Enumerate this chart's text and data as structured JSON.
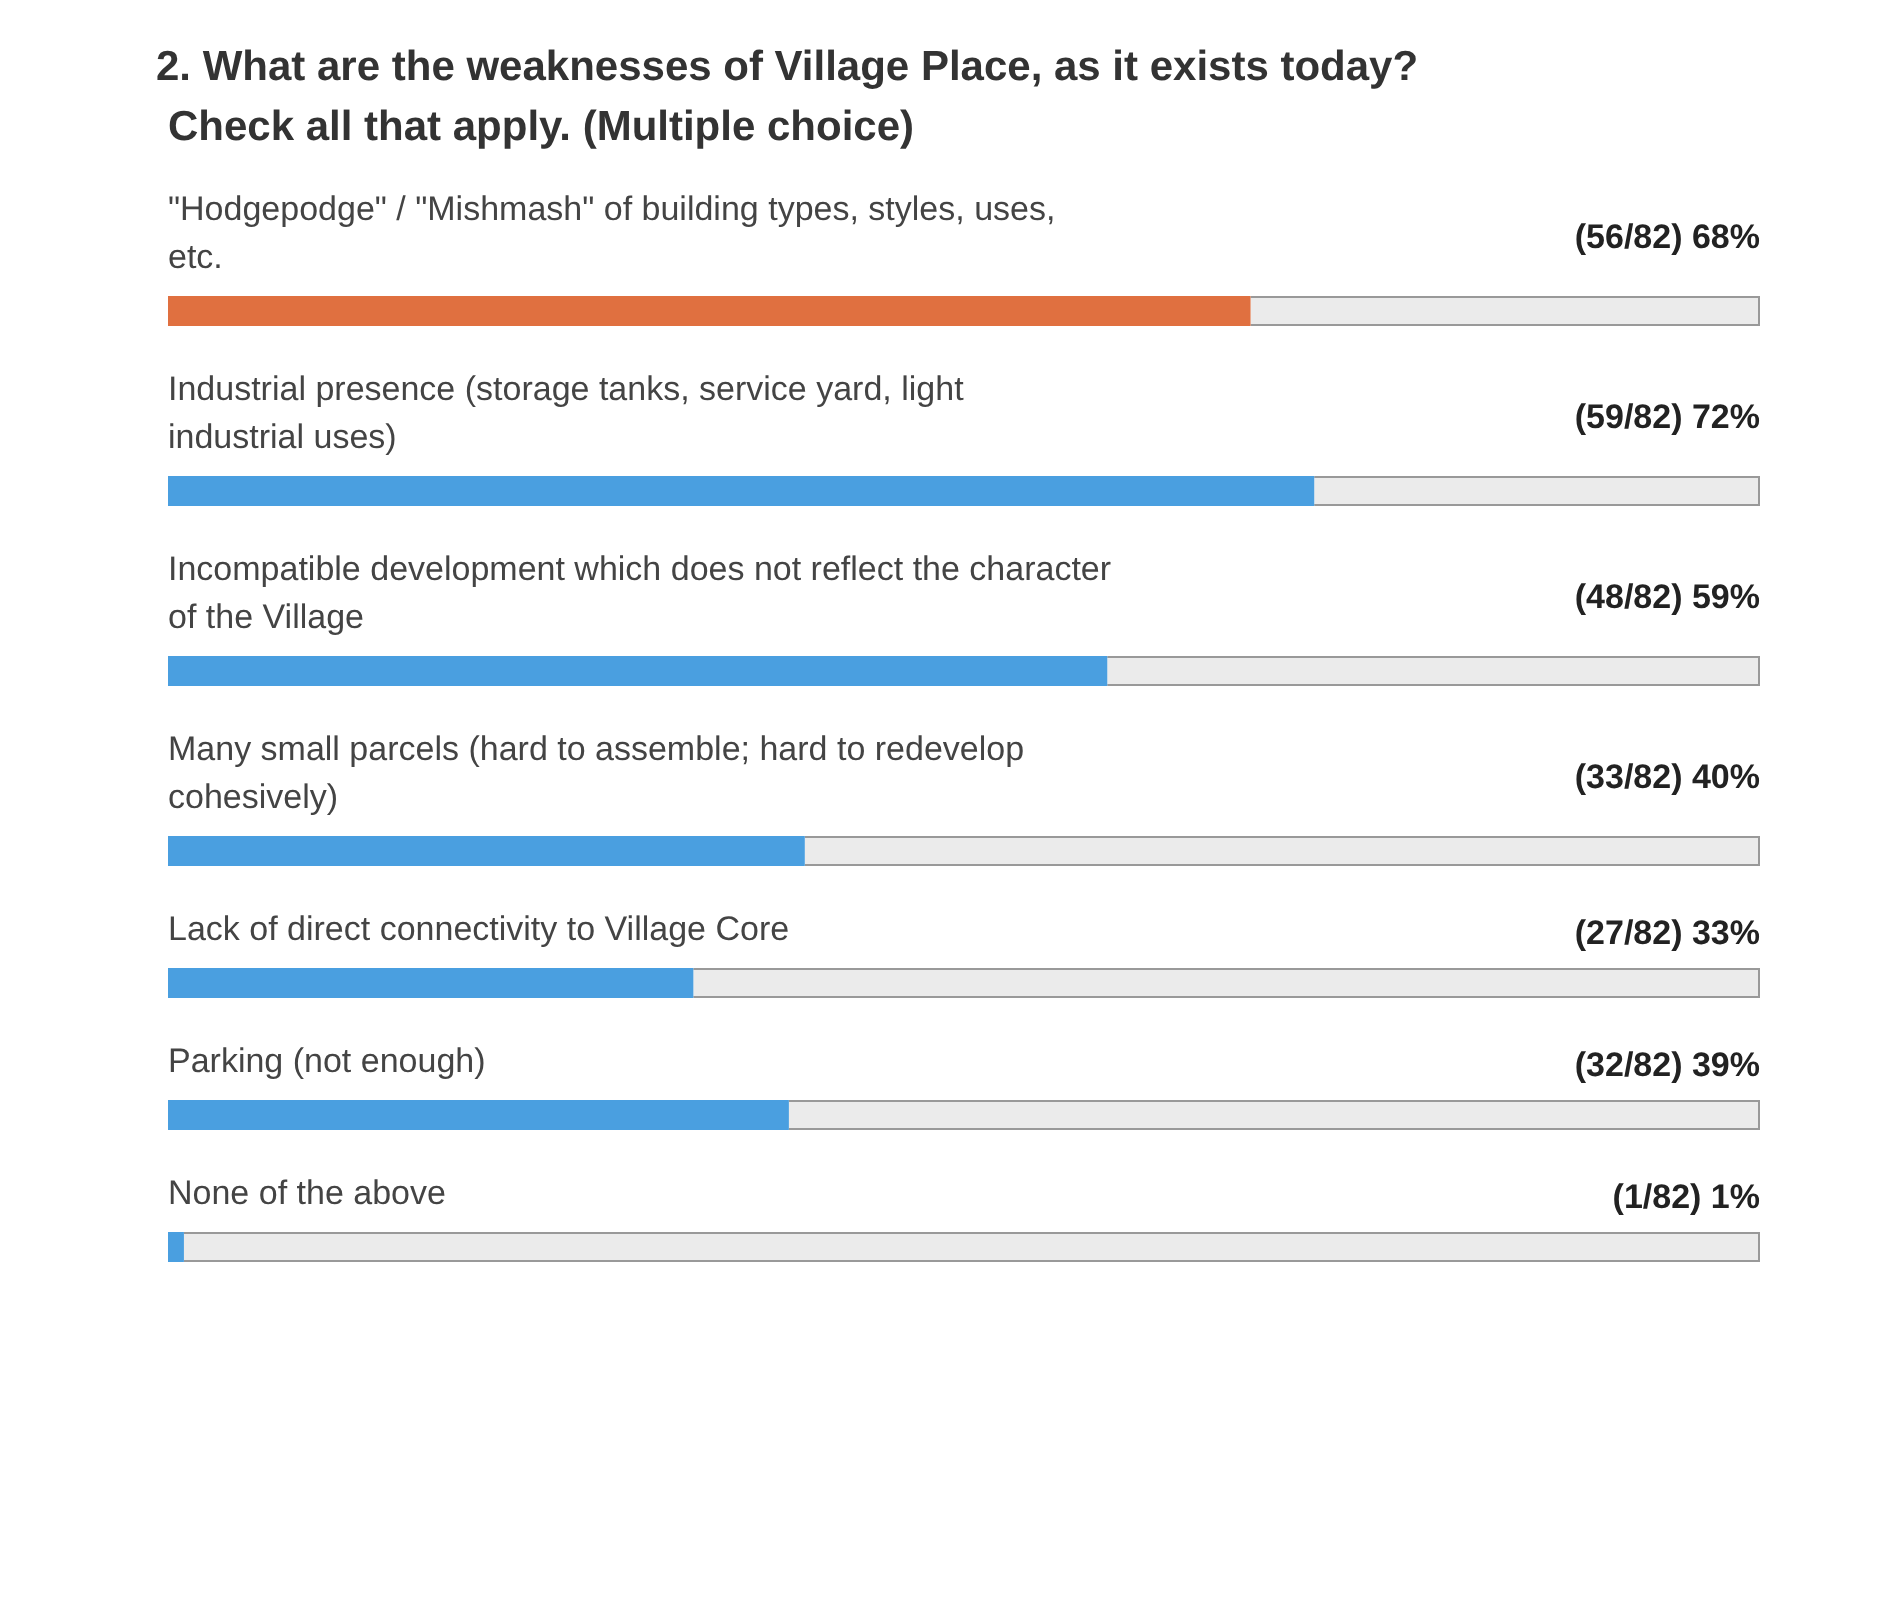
{
  "chart_data": {
    "type": "bar",
    "orientation": "horizontal",
    "title": "2. What are the weaknesses of Village Place, as it exists today? Check all that apply. (Multiple choice)",
    "categories": [
      "\"Hodgepodge\" / \"Mishmash\" of building types, styles, uses, etc.",
      "Industrial presence (storage tanks, service yard, light industrial uses)",
      "Incompatible development which does not reflect the character of the Village",
      "Many small parcels (hard to assemble; hard to redevelop cohesively)",
      "Lack of direct connectivity to Village Core",
      "Parking (not enough)",
      "None of the above"
    ],
    "values": [
      68,
      72,
      59,
      40,
      33,
      39,
      1
    ],
    "colors": [
      "#e07040",
      "#4a9fe0",
      "#4a9fe0",
      "#4a9fe0",
      "#4a9fe0",
      "#4a9fe0",
      "#4a9fe0"
    ],
    "value_labels": [
      "(56/82) 68%",
      "(59/82) 72%",
      "(48/82) 59%",
      "(33/82) 40%",
      "(27/82) 33%",
      "(32/82) 39%",
      "(1/82) 1%"
    ],
    "xlim": [
      0,
      100
    ]
  }
}
